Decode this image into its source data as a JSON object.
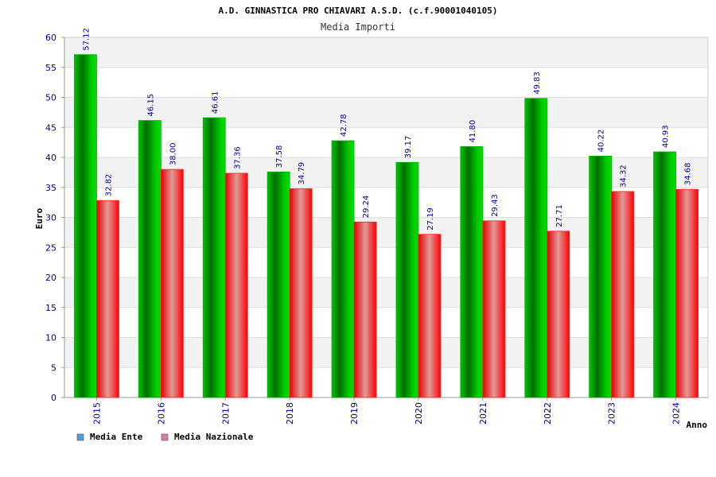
{
  "chart_data": {
    "type": "bar",
    "title": "A.D. GINNASTICA PRO CHIAVARI A.S.D. (c.f.90001040105)",
    "subtitle": "Media Importi",
    "xlabel": "Anno",
    "ylabel": "Euro",
    "ylim": [
      0,
      60
    ],
    "yticks": [
      0,
      5,
      10,
      15,
      20,
      25,
      30,
      35,
      40,
      45,
      50,
      55,
      60
    ],
    "categories": [
      "2015",
      "2016",
      "2017",
      "2018",
      "2019",
      "2020",
      "2021",
      "2022",
      "2023",
      "2024"
    ],
    "series": [
      {
        "name": "Media Ente",
        "color": "#00a000",
        "legend_color": "#5b9bd5",
        "values": [
          57.12,
          46.15,
          46.61,
          37.58,
          42.78,
          39.17,
          41.8,
          49.83,
          40.22,
          40.93
        ],
        "labels": [
          "57.12",
          "46.15",
          "46.61",
          "37.58",
          "42.78",
          "39.17",
          "41.80",
          "49.83",
          "40.22",
          "40.93"
        ]
      },
      {
        "name": "Media Nazionale",
        "color": "#e00000",
        "legend_color": "#d97bab",
        "values": [
          32.82,
          38.0,
          37.36,
          34.79,
          29.24,
          27.19,
          29.43,
          27.71,
          34.32,
          34.68
        ],
        "labels": [
          "32.82",
          "38.00",
          "37.36",
          "34.79",
          "29.24",
          "27.19",
          "29.43",
          "27.71",
          "34.32",
          "34.68"
        ]
      }
    ],
    "grid": true,
    "legend_position": "bottom-left"
  }
}
